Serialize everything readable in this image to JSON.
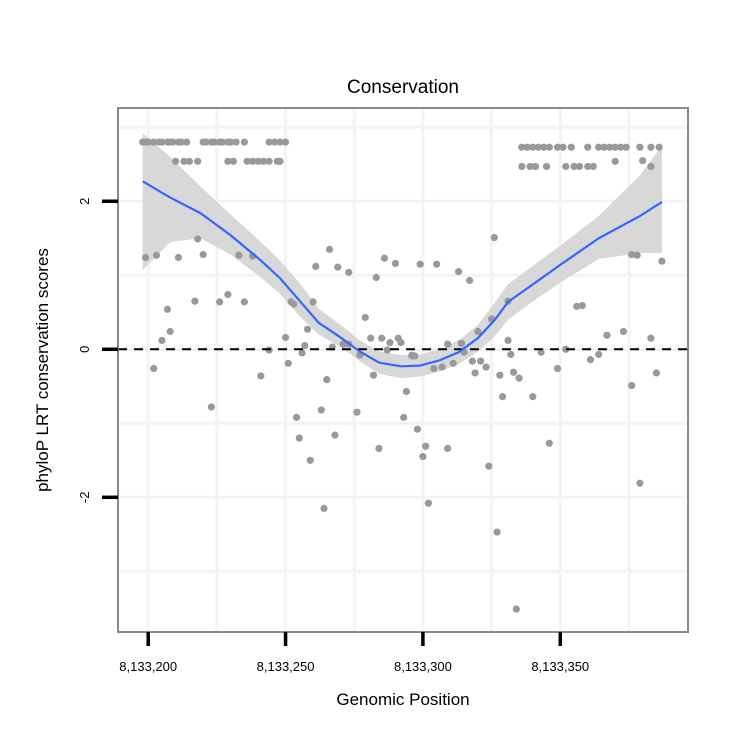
{
  "chart_data": {
    "type": "scatter",
    "title": "Conservation",
    "xlabel": "Genomic Position",
    "ylabel": "phyloP LRT conservation scores",
    "xlim": [
      8133189,
      8133396.5
    ],
    "ylim": [
      -3.82,
      3.26
    ],
    "x_ticks": [
      8133200,
      8133250,
      8133300,
      8133350
    ],
    "x_tick_labels": [
      "8,133,200",
      "8,133,250",
      "8,133,300",
      "8,133,350"
    ],
    "y_ticks": [
      -2,
      0,
      2
    ],
    "y_tick_labels": [
      "-2",
      "0",
      "2"
    ],
    "x_minor_grid": [
      8133225,
      8133275,
      8133325,
      8133375
    ],
    "y_minor_grid": [
      -3,
      -1,
      1,
      3
    ],
    "grid": true,
    "reference_line_y": 0,
    "colors": {
      "points": "#999999",
      "smooth": "#3366FF",
      "band": "#d4d4d4",
      "panel_border": "#8a8a8a",
      "grid": "#f3f3f3"
    },
    "points": [
      [
        8133198,
        2.8
      ],
      [
        8133199,
        2.8
      ],
      [
        8133200,
        2.8
      ],
      [
        8133202,
        2.8
      ],
      [
        8133204,
        2.8
      ],
      [
        8133205,
        2.8
      ],
      [
        8133207,
        2.8
      ],
      [
        8133208,
        2.8
      ],
      [
        8133209,
        2.8
      ],
      [
        8133211,
        2.8
      ],
      [
        8133212,
        2.8
      ],
      [
        8133214,
        2.8
      ],
      [
        8133220,
        2.8
      ],
      [
        8133221,
        2.8
      ],
      [
        8133223,
        2.8
      ],
      [
        8133224,
        2.8
      ],
      [
        8133226,
        2.8
      ],
      [
        8133227,
        2.8
      ],
      [
        8133229,
        2.8
      ],
      [
        8133230,
        2.8
      ],
      [
        8133232,
        2.8
      ],
      [
        8133235,
        2.8
      ],
      [
        8133244,
        2.8
      ],
      [
        8133246,
        2.8
      ],
      [
        8133248,
        2.8
      ],
      [
        8133250,
        2.8
      ],
      [
        8133210,
        2.54
      ],
      [
        8133213,
        2.54
      ],
      [
        8133215,
        2.54
      ],
      [
        8133218,
        2.54
      ],
      [
        8133229,
        2.54
      ],
      [
        8133231,
        2.54
      ],
      [
        8133236,
        2.54
      ],
      [
        8133238,
        2.54
      ],
      [
        8133240,
        2.54
      ],
      [
        8133242,
        2.54
      ],
      [
        8133244,
        2.54
      ],
      [
        8133247,
        2.54
      ],
      [
        8133248,
        2.54
      ],
      [
        8133336,
        2.73
      ],
      [
        8133338,
        2.73
      ],
      [
        8133340,
        2.73
      ],
      [
        8133342,
        2.73
      ],
      [
        8133344,
        2.73
      ],
      [
        8133346,
        2.73
      ],
      [
        8133349,
        2.73
      ],
      [
        8133351,
        2.73
      ],
      [
        8133354,
        2.73
      ],
      [
        8133360,
        2.73
      ],
      [
        8133364,
        2.73
      ],
      [
        8133366,
        2.73
      ],
      [
        8133368,
        2.73
      ],
      [
        8133370,
        2.73
      ],
      [
        8133372,
        2.73
      ],
      [
        8133374,
        2.73
      ],
      [
        8133379,
        2.73
      ],
      [
        8133383,
        2.73
      ],
      [
        8133386,
        2.73
      ],
      [
        8133336,
        2.47
      ],
      [
        8133339,
        2.47
      ],
      [
        8133341,
        2.47
      ],
      [
        8133345,
        2.47
      ],
      [
        8133352,
        2.47
      ],
      [
        8133355,
        2.47
      ],
      [
        8133357,
        2.47
      ],
      [
        8133360,
        2.47
      ],
      [
        8133362,
        2.47
      ],
      [
        8133370,
        2.54
      ],
      [
        8133380,
        2.55
      ],
      [
        8133383,
        2.47
      ],
      [
        8133199,
        1.24
      ],
      [
        8133203,
        1.27
      ],
      [
        8133202,
        -0.26
      ],
      [
        8133207,
        0.54
      ],
      [
        8133208,
        0.24
      ],
      [
        8133205,
        0.12
      ],
      [
        8133211,
        1.24
      ],
      [
        8133217,
        0.65
      ],
      [
        8133218,
        1.49
      ],
      [
        8133220,
        1.28
      ],
      [
        8133226,
        0.64
      ],
      [
        8133229,
        0.74
      ],
      [
        8133223,
        -0.78
      ],
      [
        8133233,
        1.27
      ],
      [
        8133238,
        1.26
      ],
      [
        8133235,
        0.64
      ],
      [
        8133241,
        -0.36
      ],
      [
        8133244,
        -0.01
      ],
      [
        8133250,
        0.16
      ],
      [
        8133251,
        -0.19
      ],
      [
        8133252,
        0.64
      ],
      [
        8133253,
        0.61
      ],
      [
        8133260,
        0.64
      ],
      [
        8133258,
        0.27
      ],
      [
        8133257,
        0.05
      ],
      [
        8133256,
        -0.05
      ],
      [
        8133261,
        1.12
      ],
      [
        8133266,
        1.35
      ],
      [
        8133269,
        1.11
      ],
      [
        8133273,
        1.04
      ],
      [
        8133265,
        -0.41
      ],
      [
        8133267,
        0.03
      ],
      [
        8133271,
        0.07
      ],
      [
        8133273,
        0.07
      ],
      [
        8133277,
        -0.08
      ],
      [
        8133279,
        0.43
      ],
      [
        8133282,
        -0.35
      ],
      [
        8133281,
        0.15
      ],
      [
        8133285,
        0.15
      ],
      [
        8133283,
        0.97
      ],
      [
        8133286,
        1.23
      ],
      [
        8133290,
        1.16
      ],
      [
        8133288,
        0.09
      ],
      [
        8133291,
        0.15
      ],
      [
        8133292,
        0.09
      ],
      [
        8133296,
        -0.08
      ],
      [
        8133287,
        -0.01
      ],
      [
        8133299,
        1.15
      ],
      [
        8133305,
        1.15
      ],
      [
        8133313,
        1.05
      ],
      [
        8133317,
        0.93
      ],
      [
        8133326,
        1.51
      ],
      [
        8133331,
        0.65
      ],
      [
        8133325,
        0.41
      ],
      [
        8133320,
        0.24
      ],
      [
        8133331,
        0.12
      ],
      [
        8133332,
        -0.07
      ],
      [
        8133343,
        -0.04
      ],
      [
        8133352,
        0.0
      ],
      [
        8133364,
        -0.07
      ],
      [
        8133367,
        0.19
      ],
      [
        8133373,
        0.24
      ],
      [
        8133383,
        0.15
      ],
      [
        8133356,
        0.58
      ],
      [
        8133358,
        0.59
      ],
      [
        8133349,
        -0.26
      ],
      [
        8133385,
        -0.32
      ],
      [
        8133387,
        1.19
      ],
      [
        8133376,
        1.28
      ],
      [
        8133378,
        1.27
      ],
      [
        8133296,
        -0.09
      ],
      [
        8133297,
        -0.09
      ],
      [
        8133304,
        -0.26
      ],
      [
        8133307,
        -0.24
      ],
      [
        8133311,
        -0.19
      ],
      [
        8133309,
        0.07
      ],
      [
        8133314,
        0.08
      ],
      [
        8133315,
        -0.04
      ],
      [
        8133318,
        -0.16
      ],
      [
        8133321,
        -0.16
      ],
      [
        8133323,
        -0.24
      ],
      [
        8133319,
        -0.32
      ],
      [
        8133328,
        -0.35
      ],
      [
        8133333,
        -0.31
      ],
      [
        8133254,
        -0.92
      ],
      [
        8133255,
        -1.2
      ],
      [
        8133259,
        -1.5
      ],
      [
        8133264,
        -2.15
      ],
      [
        8133263,
        -0.82
      ],
      [
        8133268,
        -1.16
      ],
      [
        8133276,
        -0.85
      ],
      [
        8133284,
        -1.34
      ],
      [
        8133293,
        -0.92
      ],
      [
        8133298,
        -1.08
      ],
      [
        8133300,
        -1.45
      ],
      [
        8133301,
        -1.31
      ],
      [
        8133302,
        -2.08
      ],
      [
        8133309,
        -1.34
      ],
      [
        8133324,
        -1.58
      ],
      [
        8133327,
        -2.47
      ],
      [
        8133329,
        -0.64
      ],
      [
        8133335,
        -0.39
      ],
      [
        8133334,
        -3.51
      ],
      [
        8133340,
        -0.64
      ],
      [
        8133346,
        -1.27
      ],
      [
        8133379,
        -1.81
      ],
      [
        8133376,
        -0.49
      ],
      [
        8133361,
        -0.14
      ],
      [
        8133294,
        -0.57
      ]
    ],
    "smooth": {
      "x": [
        8133198,
        8133208,
        8133219,
        8133230,
        8133241,
        8133248,
        8133255,
        8133262,
        8133270,
        8133277,
        8133284,
        8133292,
        8133299,
        8133306,
        8133313,
        8133320,
        8133326,
        8133331,
        8133339,
        8133350,
        8133364,
        8133379,
        8133387
      ],
      "y": [
        2.27,
        2.05,
        1.84,
        1.54,
        1.2,
        0.96,
        0.66,
        0.36,
        0.16,
        -0.03,
        -0.18,
        -0.23,
        -0.22,
        -0.15,
        -0.04,
        0.15,
        0.39,
        0.64,
        0.85,
        1.14,
        1.5,
        1.8,
        1.99
      ],
      "lower": [
        1.07,
        1.45,
        1.5,
        1.28,
        0.97,
        0.75,
        0.45,
        0.2,
        0.03,
        -0.16,
        -0.33,
        -0.39,
        -0.37,
        -0.3,
        -0.2,
        -0.03,
        0.17,
        0.4,
        0.62,
        0.9,
        1.22,
        1.3,
        1.3
      ],
      "upper": [
        2.92,
        2.6,
        2.2,
        1.82,
        1.45,
        1.2,
        0.9,
        0.55,
        0.33,
        0.12,
        -0.03,
        -0.08,
        -0.07,
        0.0,
        0.12,
        0.33,
        0.62,
        0.88,
        1.1,
        1.4,
        1.8,
        2.35,
        2.75
      ]
    }
  }
}
